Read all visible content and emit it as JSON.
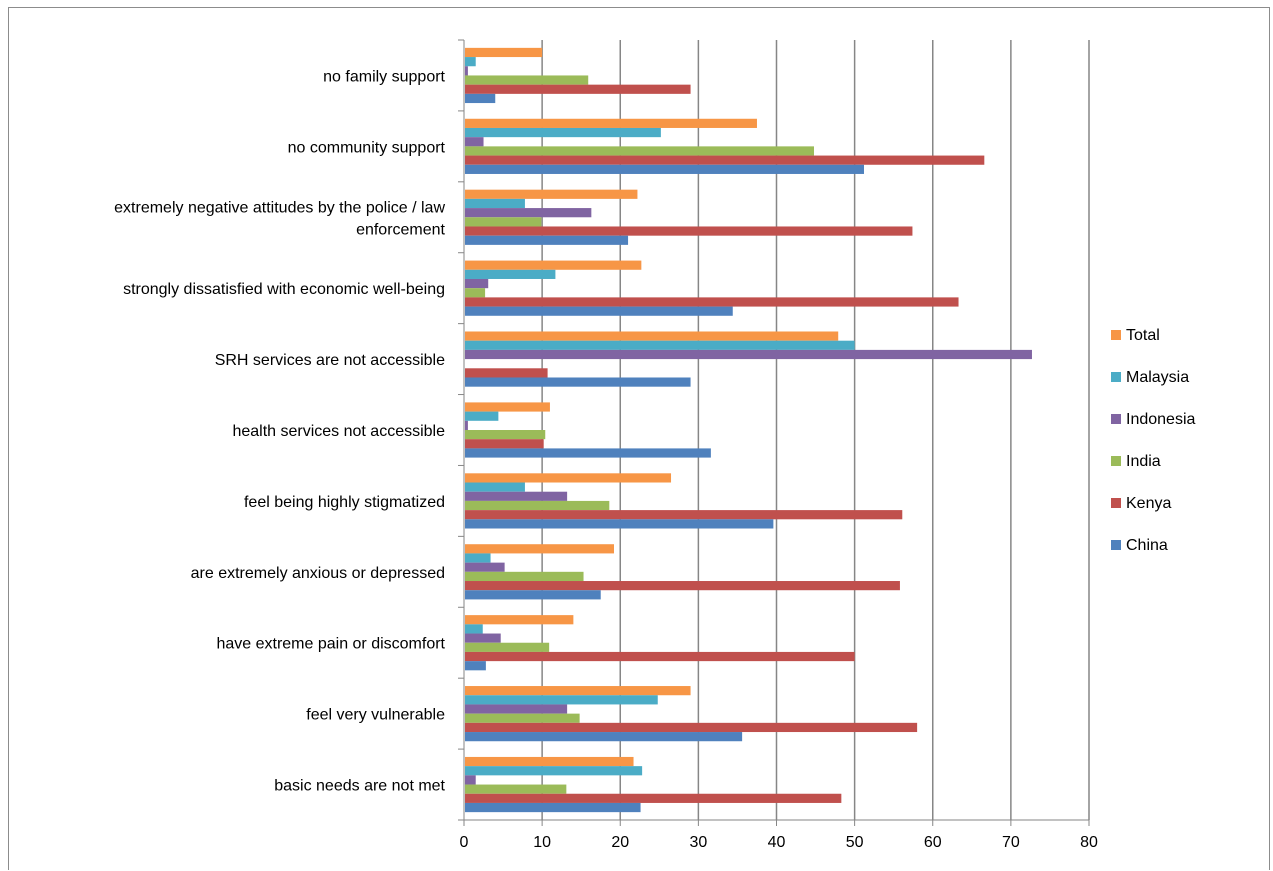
{
  "chart_data": {
    "type": "bar",
    "orientation": "horizontal",
    "title": "",
    "xlabel": "",
    "ylabel": "",
    "xlim": [
      0,
      80
    ],
    "x_ticks": [
      0,
      10,
      20,
      30,
      40,
      50,
      60,
      70,
      80
    ],
    "grid": "vertical major gridlines",
    "legend_position": "right",
    "categories": [
      [
        "no family support"
      ],
      [
        "no community support"
      ],
      [
        "extremely negative attitudes by the police / law",
        "enforcement"
      ],
      [
        "strongly dissatisfied with economic well-being"
      ],
      [
        "SRH services are not accessible"
      ],
      [
        "health services not accessible"
      ],
      [
        "feel being highly stigmatized"
      ],
      [
        "are extremely anxious or depressed"
      ],
      [
        "have extreme pain or discomfort"
      ],
      [
        "feel very vulnerable"
      ],
      [
        "basic needs are not met"
      ]
    ],
    "series": [
      {
        "name": "Total",
        "color": "#F79646",
        "values": [
          10,
          37.5,
          22.2,
          22.7,
          47.9,
          11,
          26.5,
          19.2,
          14,
          29,
          21.7
        ]
      },
      {
        "name": "Malaysia",
        "color": "#4BACC6",
        "values": [
          1.5,
          25.2,
          7.8,
          11.7,
          50,
          4.4,
          7.8,
          3.4,
          2.4,
          24.8,
          22.8
        ]
      },
      {
        "name": "Indonesia",
        "color": "#8064A2",
        "values": [
          0.5,
          2.5,
          16.3,
          3.1,
          72.7,
          0.5,
          13.2,
          5.2,
          4.7,
          13.2,
          1.5
        ]
      },
      {
        "name": "India",
        "color": "#9BBB59",
        "values": [
          15.9,
          44.8,
          9.9,
          2.7,
          0,
          10.4,
          18.6,
          15.3,
          10.9,
          14.8,
          13.1
        ]
      },
      {
        "name": "Kenya",
        "color": "#C0504D",
        "values": [
          29,
          66.6,
          57.4,
          63.3,
          10.7,
          10.2,
          56.1,
          55.8,
          50,
          58,
          48.3
        ]
      },
      {
        "name": "China",
        "color": "#4F81BD",
        "values": [
          4,
          51.2,
          21,
          34.4,
          29,
          31.6,
          39.6,
          17.5,
          2.8,
          35.6,
          22.6
        ]
      }
    ]
  }
}
